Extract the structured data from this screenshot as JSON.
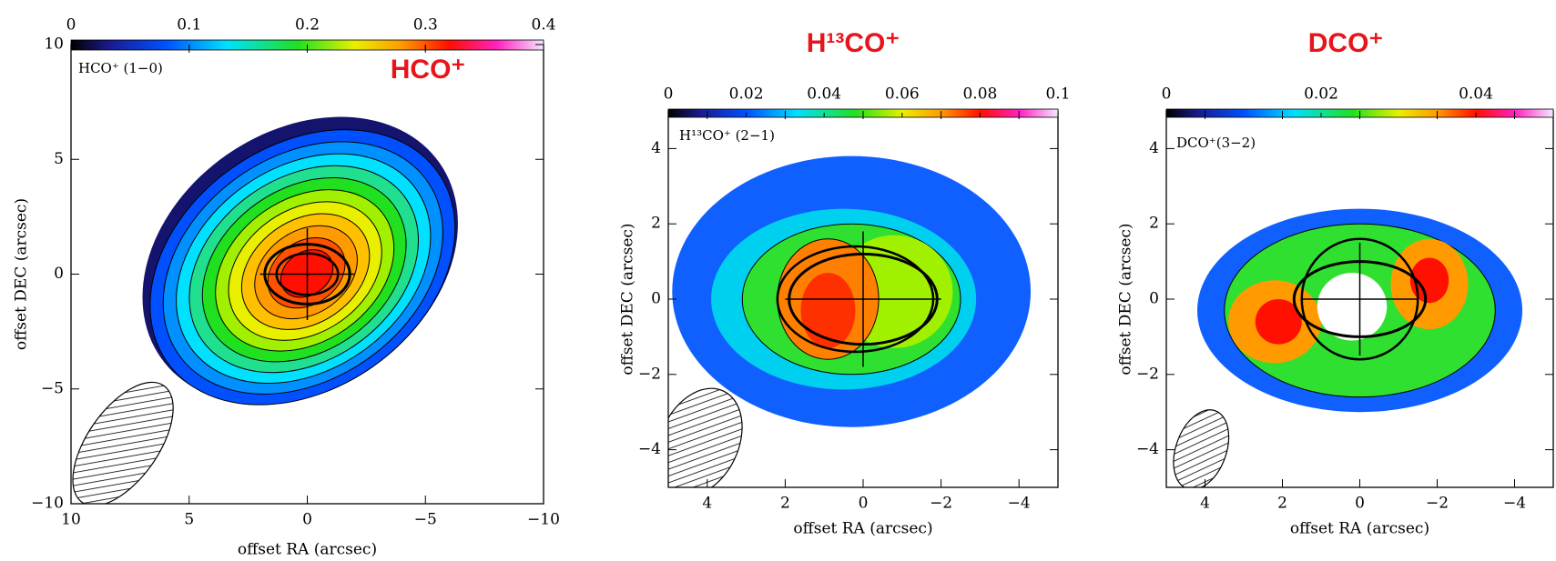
{
  "chart_data": [
    {
      "type": "map",
      "title": "HCO⁺",
      "label": "HCO⁺ (1−0)",
      "xlabel": "offset RA (arcsec)",
      "ylabel": "offset DEC (arcsec)",
      "xlim": [
        10,
        -10
      ],
      "ylim": [
        -10,
        10
      ],
      "xticks": [
        10,
        5,
        0,
        {
          "value": -5,
          "label": "−5"
        },
        {
          "value": -10,
          "label": "−10"
        }
      ],
      "yticks": [
        {
          "value": -10,
          "label": "−10"
        },
        {
          "value": -5,
          "label": "−5"
        },
        0,
        5,
        10
      ],
      "clim": [
        0,
        0.4
      ],
      "cticks": [
        0,
        0.1,
        0.2,
        0.3,
        0.4
      ]
    },
    {
      "type": "map",
      "title": "H¹³CO⁺",
      "label": "H¹³CO⁺ (2−1)",
      "xlabel": "offset RA (arcsec)",
      "ylabel": "offset DEC (arcsec)",
      "xlim": [
        5,
        -5
      ],
      "ylim": [
        -5,
        5
      ],
      "xticks": [
        4,
        2,
        0,
        {
          "value": -2,
          "label": "−2"
        },
        {
          "value": -4,
          "label": "−4"
        }
      ],
      "yticks": [
        {
          "value": -4,
          "label": "−4"
        },
        {
          "value": -2,
          "label": "−2"
        },
        0,
        2,
        4
      ],
      "clim": [
        0,
        0.1
      ],
      "cticks": [
        0,
        0.02,
        0.04,
        0.06,
        0.08,
        0.1
      ]
    },
    {
      "type": "map",
      "title": "DCO⁺",
      "label": "DCO⁺(3−2)",
      "xlabel": "offset RA (arcsec)",
      "ylabel": "offset DEC (arcsec)",
      "xlim": [
        5,
        -5
      ],
      "ylim": [
        -5,
        5
      ],
      "xticks": [
        4,
        2,
        0,
        {
          "value": -2,
          "label": "−2"
        },
        {
          "value": -4,
          "label": "−4"
        }
      ],
      "yticks": [
        {
          "value": -4,
          "label": "−4"
        },
        {
          "value": -2,
          "label": "−2"
        },
        0,
        2,
        4
      ],
      "clim": [
        0,
        0.05
      ],
      "cticks": [
        0,
        0.02,
        0.04
      ]
    }
  ]
}
